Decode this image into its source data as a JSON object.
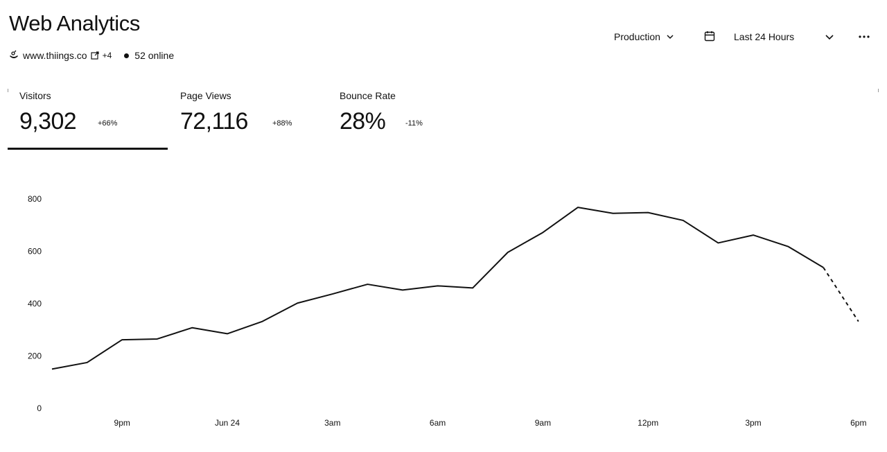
{
  "header": {
    "title": "Web Analytics",
    "site": "www.thiings.co",
    "more_sites": "+4",
    "online": "52 online"
  },
  "toolbar": {
    "environment": "Production",
    "range": "Last 24 Hours",
    "icons": [
      "calendar-icon",
      "chevron-down-icon",
      "more-icon"
    ]
  },
  "metrics": [
    {
      "label": "Visitors",
      "value": "9,302",
      "delta": "+66%",
      "selected": true
    },
    {
      "label": "Page Views",
      "value": "72,116",
      "delta": "+88%",
      "selected": false
    },
    {
      "label": "Bounce Rate",
      "value": "28%",
      "delta": "-11%",
      "selected": false
    }
  ],
  "chart_data": {
    "type": "line",
    "series": [
      {
        "values": [
          150,
          175,
          262,
          265,
          308,
          285,
          332,
          402,
          437,
          474,
          452,
          468,
          460,
          596,
          672,
          768,
          745,
          748,
          718,
          632,
          662,
          618,
          538,
          332
        ],
        "projected_from_index": 22
      }
    ],
    "x_tick_labels": [
      "9pm",
      "Jun 24",
      "3am",
      "6am",
      "9am",
      "12pm",
      "3pm",
      "6pm"
    ],
    "x_tick_indices": [
      2,
      5,
      8,
      11,
      14,
      17,
      20,
      23
    ],
    "y_ticks": [
      0,
      200,
      400,
      600,
      800
    ],
    "ylim": [
      0,
      800
    ],
    "grid": false,
    "line_color": "#111111"
  }
}
